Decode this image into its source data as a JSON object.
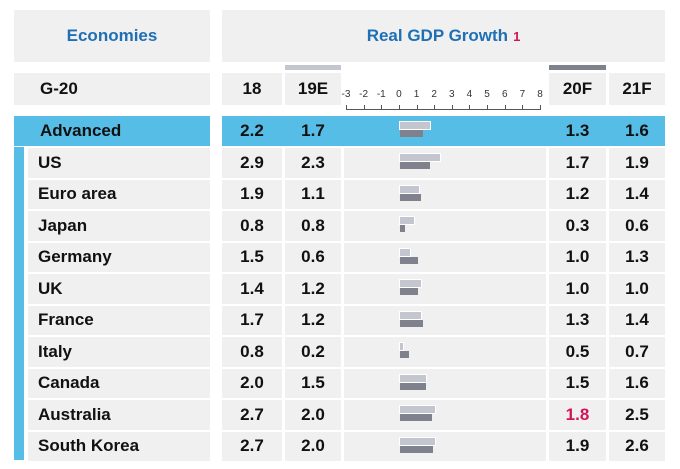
{
  "header": {
    "economies": "Economies",
    "title": "Real GDP Growth",
    "footnote": "1"
  },
  "group": "G-20",
  "chart_data": {
    "type": "bar",
    "title": "Real GDP Growth",
    "columns": [
      "18",
      "19E",
      "20F",
      "21F"
    ],
    "axis": {
      "min": -3,
      "max": 8,
      "ticks": [
        "-3",
        "-2",
        "-1",
        "0",
        "1",
        "2",
        "3",
        "4",
        "5",
        "6",
        "7",
        "8"
      ]
    },
    "bar_series": [
      "19E",
      "20F"
    ],
    "colors": {
      "19E": "#c3c6cf",
      "20F": "#7f828c",
      "highlight": "#d4145a",
      "advanced": "#55bde6"
    },
    "rows": [
      {
        "name": "Advanced",
        "v18": "2.2",
        "v19": "1.7",
        "v20": "1.3",
        "v21": "1.6"
      },
      {
        "name": "US",
        "v18": "2.9",
        "v19": "2.3",
        "v20": "1.7",
        "v21": "1.9"
      },
      {
        "name": "Euro area",
        "v18": "1.9",
        "v19": "1.1",
        "v20": "1.2",
        "v21": "1.4"
      },
      {
        "name": "Japan",
        "v18": "0.8",
        "v19": "0.8",
        "v20": "0.3",
        "v21": "0.6"
      },
      {
        "name": "Germany",
        "v18": "1.5",
        "v19": "0.6",
        "v20": "1.0",
        "v21": "1.3"
      },
      {
        "name": "UK",
        "v18": "1.4",
        "v19": "1.2",
        "v20": "1.0",
        "v21": "1.0"
      },
      {
        "name": "France",
        "v18": "1.7",
        "v19": "1.2",
        "v20": "1.3",
        "v21": "1.4"
      },
      {
        "name": "Italy",
        "v18": "0.8",
        "v19": "0.2",
        "v20": "0.5",
        "v21": "0.7"
      },
      {
        "name": "Canada",
        "v18": "2.0",
        "v19": "1.5",
        "v20": "1.5",
        "v21": "1.6"
      },
      {
        "name": "Australia",
        "v18": "2.7",
        "v19": "2.0",
        "v20": "1.8",
        "v21": "2.5",
        "v20_highlight": true
      },
      {
        "name": "South Korea",
        "v18": "2.7",
        "v19": "2.0",
        "v20": "1.9",
        "v21": "2.6"
      }
    ]
  }
}
